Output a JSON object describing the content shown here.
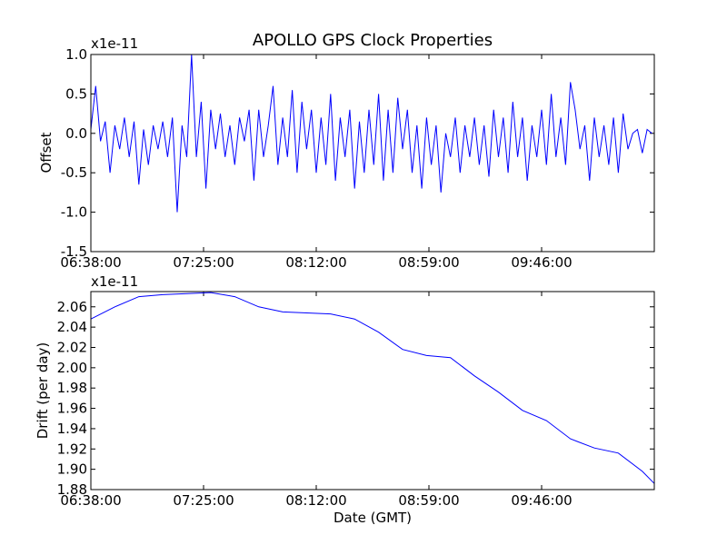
{
  "chart_data": [
    {
      "type": "line",
      "title": "APOLLO GPS Clock Properties",
      "offset_text": "x1e-11",
      "xlabel": "",
      "ylabel": "Offset",
      "xlim": [
        "06:38:00",
        "10:33:00"
      ],
      "ylim": [
        -1.5,
        1.0
      ],
      "xticks": [
        "06:38:00",
        "07:25:00",
        "08:12:00",
        "08:59:00",
        "09:46:00"
      ],
      "yticks": [
        1.0,
        0.5,
        0.0,
        -0.5,
        -1.0,
        -1.5
      ],
      "ytick_labels": [
        "1.0",
        "0.5",
        "0.0",
        "-0.5",
        "-1.0",
        "-1.5"
      ],
      "grid": false,
      "series": [
        {
          "color": "#0000ff",
          "x": [
            "06:38:00",
            "06:40:00",
            "06:42:00",
            "06:44:00",
            "06:46:00",
            "06:48:00",
            "06:50:00",
            "06:52:00",
            "06:54:00",
            "06:56:00",
            "06:58:00",
            "07:00:00",
            "07:02:00",
            "07:04:00",
            "07:06:00",
            "07:08:00",
            "07:10:00",
            "07:12:00",
            "07:14:00",
            "07:16:00",
            "07:18:00",
            "07:20:00",
            "07:22:00",
            "07:24:00",
            "07:26:00",
            "07:28:00",
            "07:30:00",
            "07:32:00",
            "07:34:00",
            "07:36:00",
            "07:38:00",
            "07:40:00",
            "07:42:00",
            "07:44:00",
            "07:46:00",
            "07:48:00",
            "07:50:00",
            "07:52:00",
            "07:54:00",
            "07:56:00",
            "07:58:00",
            "08:00:00",
            "08:02:00",
            "08:04:00",
            "08:06:00",
            "08:08:00",
            "08:10:00",
            "08:12:00",
            "08:14:00",
            "08:16:00",
            "08:18:00",
            "08:20:00",
            "08:22:00",
            "08:24:00",
            "08:26:00",
            "08:28:00",
            "08:30:00",
            "08:32:00",
            "08:34:00",
            "08:36:00",
            "08:38:00",
            "08:40:00",
            "08:42:00",
            "08:44:00",
            "08:46:00",
            "08:48:00",
            "08:50:00",
            "08:52:00",
            "08:54:00",
            "08:56:00",
            "08:58:00",
            "09:00:00",
            "09:02:00",
            "09:04:00",
            "09:06:00",
            "09:08:00",
            "09:10:00",
            "09:12:00",
            "09:14:00",
            "09:16:00",
            "09:18:00",
            "09:20:00",
            "09:22:00",
            "09:24:00",
            "09:26:00",
            "09:28:00",
            "09:30:00",
            "09:32:00",
            "09:34:00",
            "09:36:00",
            "09:38:00",
            "09:40:00",
            "09:42:00",
            "09:44:00",
            "09:46:00",
            "09:48:00",
            "09:50:00",
            "09:52:00",
            "09:54:00",
            "09:56:00",
            "09:58:00",
            "10:00:00",
            "10:02:00",
            "10:04:00",
            "10:06:00",
            "10:08:00",
            "10:10:00",
            "10:12:00",
            "10:14:00",
            "10:16:00",
            "10:18:00",
            "10:20:00",
            "10:22:00",
            "10:24:00",
            "10:26:00",
            "10:28:00",
            "10:30:00",
            "10:32:00"
          ],
          "y": [
            0.05,
            0.6,
            -0.1,
            0.15,
            -0.5,
            0.1,
            -0.2,
            0.2,
            -0.3,
            0.15,
            -0.65,
            0.05,
            -0.4,
            0.1,
            -0.2,
            0.15,
            -0.3,
            0.2,
            -1.0,
            0.1,
            -0.3,
            1.0,
            -0.3,
            0.4,
            -0.7,
            0.3,
            -0.2,
            0.25,
            -0.3,
            0.1,
            -0.4,
            0.2,
            -0.1,
            0.3,
            -0.6,
            0.3,
            -0.3,
            0.1,
            0.6,
            -0.4,
            0.2,
            -0.3,
            0.55,
            -0.5,
            0.4,
            -0.2,
            0.3,
            -0.5,
            0.2,
            -0.4,
            0.5,
            -0.6,
            0.2,
            -0.3,
            0.3,
            -0.7,
            0.15,
            -0.5,
            0.3,
            -0.4,
            0.5,
            -0.6,
            0.3,
            -0.5,
            0.45,
            -0.2,
            0.3,
            -0.5,
            0.1,
            -0.7,
            0.2,
            -0.4,
            0.1,
            -0.75,
            0.0,
            -0.3,
            0.2,
            -0.5,
            0.1,
            -0.3,
            0.2,
            -0.4,
            0.1,
            -0.55,
            0.3,
            -0.3,
            0.2,
            -0.5,
            0.4,
            -0.3,
            0.2,
            -0.6,
            0.1,
            -0.3,
            0.3,
            -0.4,
            0.5,
            -0.3,
            0.2,
            -0.4,
            0.65,
            0.3,
            -0.2,
            0.1,
            -0.6,
            0.2,
            -0.3,
            0.1,
            -0.4,
            0.2,
            -0.5,
            0.25,
            -0.2,
            0.0,
            0.05,
            -0.25,
            0.05,
            0.0
          ]
        }
      ]
    },
    {
      "type": "line",
      "offset_text": "x1e-11",
      "xlabel": "Date (GMT)",
      "ylabel": "Drift (per day)",
      "xlim": [
        "06:38:00",
        "10:33:00"
      ],
      "ylim": [
        1.88,
        2.075
      ],
      "xticks": [
        "06:38:00",
        "07:25:00",
        "08:12:00",
        "08:59:00",
        "09:46:00"
      ],
      "yticks": [
        2.06,
        2.04,
        2.02,
        2.0,
        1.98,
        1.96,
        1.94,
        1.92,
        1.9,
        1.88
      ],
      "ytick_labels": [
        "2.06",
        "2.04",
        "2.02",
        "2.00",
        "1.98",
        "1.96",
        "1.94",
        "1.92",
        "1.90",
        "1.88"
      ],
      "grid": false,
      "series": [
        {
          "color": "#0000ff",
          "x": [
            "06:38:00",
            "06:48:00",
            "06:58:00",
            "07:08:00",
            "07:18:00",
            "07:28:00",
            "07:38:00",
            "07:48:00",
            "07:58:00",
            "08:08:00",
            "08:18:00",
            "08:28:00",
            "08:38:00",
            "08:48:00",
            "08:58:00",
            "09:08:00",
            "09:18:00",
            "09:28:00",
            "09:38:00",
            "09:48:00",
            "09:58:00",
            "10:08:00",
            "10:18:00",
            "10:28:00",
            "10:33:00"
          ],
          "y": [
            2.048,
            2.06,
            2.07,
            2.072,
            2.073,
            2.074,
            2.07,
            2.06,
            2.055,
            2.054,
            2.053,
            2.048,
            2.035,
            2.018,
            2.012,
            2.01,
            1.992,
            1.976,
            1.958,
            1.948,
            1.93,
            1.921,
            1.916,
            1.898,
            1.886
          ]
        }
      ]
    }
  ]
}
